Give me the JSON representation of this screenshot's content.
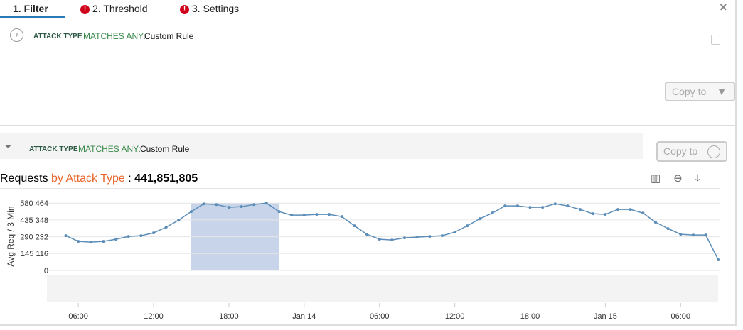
{
  "tabs": [
    "1. Filter",
    "2. Threshold",
    "3. Settings"
  ],
  "filter": {
    "label": "ATTACK TYPE",
    "operator": "MATCHES ANY:",
    "value": "Custom Rule",
    "button": "Copy to"
  },
  "chart_filter": {
    "label": "ATTACK TYPE",
    "operator": "MATCHES ANY:",
    "value": "Custom Rule",
    "button": "Copy to"
  },
  "chart": {
    "type": "line",
    "title": "Requests",
    "title_highlight": "by Attack Type",
    "title_separator": ":",
    "total": "441,851,805",
    "y_label": "Avg Req / 3 Min",
    "color": "#5b8db8",
    "x": [
      5,
      6,
      7,
      8,
      9,
      10,
      11,
      12,
      13,
      14,
      15,
      16,
      17,
      18,
      19,
      20,
      21,
      22,
      23,
      24,
      25,
      26,
      27,
      28,
      29,
      30,
      31,
      32,
      33,
      34,
      35,
      36,
      37,
      38,
      39,
      40,
      41,
      42,
      43,
      44,
      45,
      46,
      47,
      48,
      49,
      50,
      51,
      52,
      53,
      54,
      55,
      56,
      57
    ],
    "values": [
      299390,
      250510,
      244400,
      250510,
      268840,
      293280,
      299390,
      323830,
      372710,
      433810,
      507130,
      574340,
      568230,
      543790,
      549900,
      568230,
      580450,
      507130,
      476580,
      476580,
      482690,
      482690,
      464360,
      384930,
      311610,
      268840,
      262730,
      281060,
      287170,
      293280,
      299390,
      329940,
      384930,
      446030,
      494910,
      556010,
      556010,
      543790,
      543790,
      574340,
      556010,
      525460,
      488800,
      482690,
      525460,
      525460,
      494910,
      415480,
      360490,
      311610,
      305500,
      305500,
      91650
    ],
    "xlim": [
      3.5,
      57.1
    ],
    "ylim": [
      0,
      600000
    ],
    "xticks": [
      {
        "value": 6,
        "label": "06:00"
      },
      {
        "value": 12,
        "label": "12:00"
      },
      {
        "value": 18,
        "label": "18:00"
      },
      {
        "value": 24,
        "label": "Jan 14"
      },
      {
        "value": 30,
        "label": "06:00"
      },
      {
        "value": 36,
        "label": "12:00"
      },
      {
        "value": 42,
        "label": "18:00"
      },
      {
        "value": 48,
        "label": "Jan 15"
      },
      {
        "value": 54,
        "label": "06:00"
      }
    ],
    "yticks": [
      0,
      {
        "value": 145116,
        "label": "145 116"
      },
      {
        "value": 290232,
        "label": "290 232"
      },
      {
        "value": 435348,
        "label": "435 348"
      },
      {
        "value": 580464,
        "label": "580 464"
      }
    ],
    "grid": true,
    "selection": [
      15,
      22
    ],
    "selection_color": "#c8d4ea"
  }
}
